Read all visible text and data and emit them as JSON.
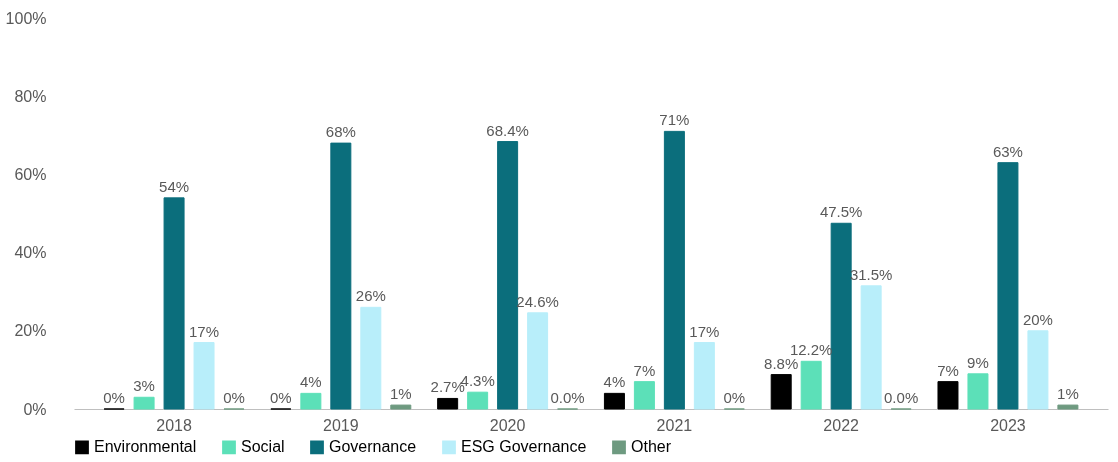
{
  "chart_data": {
    "type": "bar",
    "categories": [
      "2018",
      "2019",
      "2020",
      "2021",
      "2022",
      "2023"
    ],
    "series": [
      {
        "name": "Environmental",
        "color": "#000000",
        "values": [
          0,
          0,
          2.7,
          4,
          8.8,
          7
        ],
        "value_labels": [
          "0%",
          "0%",
          "2.7%",
          "4%",
          "8.8%",
          "7%"
        ]
      },
      {
        "name": "Social",
        "color": "#5ce0b8",
        "values": [
          3,
          4,
          4.3,
          7,
          12.2,
          9
        ],
        "value_labels": [
          "3%",
          "4%",
          "4.3%",
          "7%",
          "12.2%",
          "9%"
        ]
      },
      {
        "name": "Governance",
        "color": "#0b6e7c",
        "values": [
          54,
          68,
          68.4,
          71,
          47.5,
          63
        ],
        "value_labels": [
          "54%",
          "68%",
          "68.4%",
          "71%",
          "47.5%",
          "63%"
        ]
      },
      {
        "name": "ESG Governance",
        "color": "#b8eefa",
        "values": [
          17,
          26,
          24.6,
          17,
          31.5,
          20
        ],
        "value_labels": [
          "17%",
          "26%",
          "24.6%",
          "17%",
          "31.5%",
          "20%"
        ]
      },
      {
        "name": "Other",
        "color": "#6e9a80",
        "values": [
          0,
          1,
          0.0,
          0,
          0.0,
          1
        ],
        "value_labels": [
          "0%",
          "1%",
          "0.0%",
          "0%",
          "0.0%",
          "1%"
        ]
      }
    ],
    "ylim": [
      0,
      100
    ],
    "yticks": [
      {
        "value": 0,
        "label": "0%"
      },
      {
        "value": 20,
        "label": "20%"
      },
      {
        "value": 40,
        "label": "40%"
      },
      {
        "value": 60,
        "label": "60%"
      },
      {
        "value": 80,
        "label": "80%"
      },
      {
        "value": 100,
        "label": "100%"
      }
    ],
    "grid": false,
    "legend": "bottom"
  }
}
